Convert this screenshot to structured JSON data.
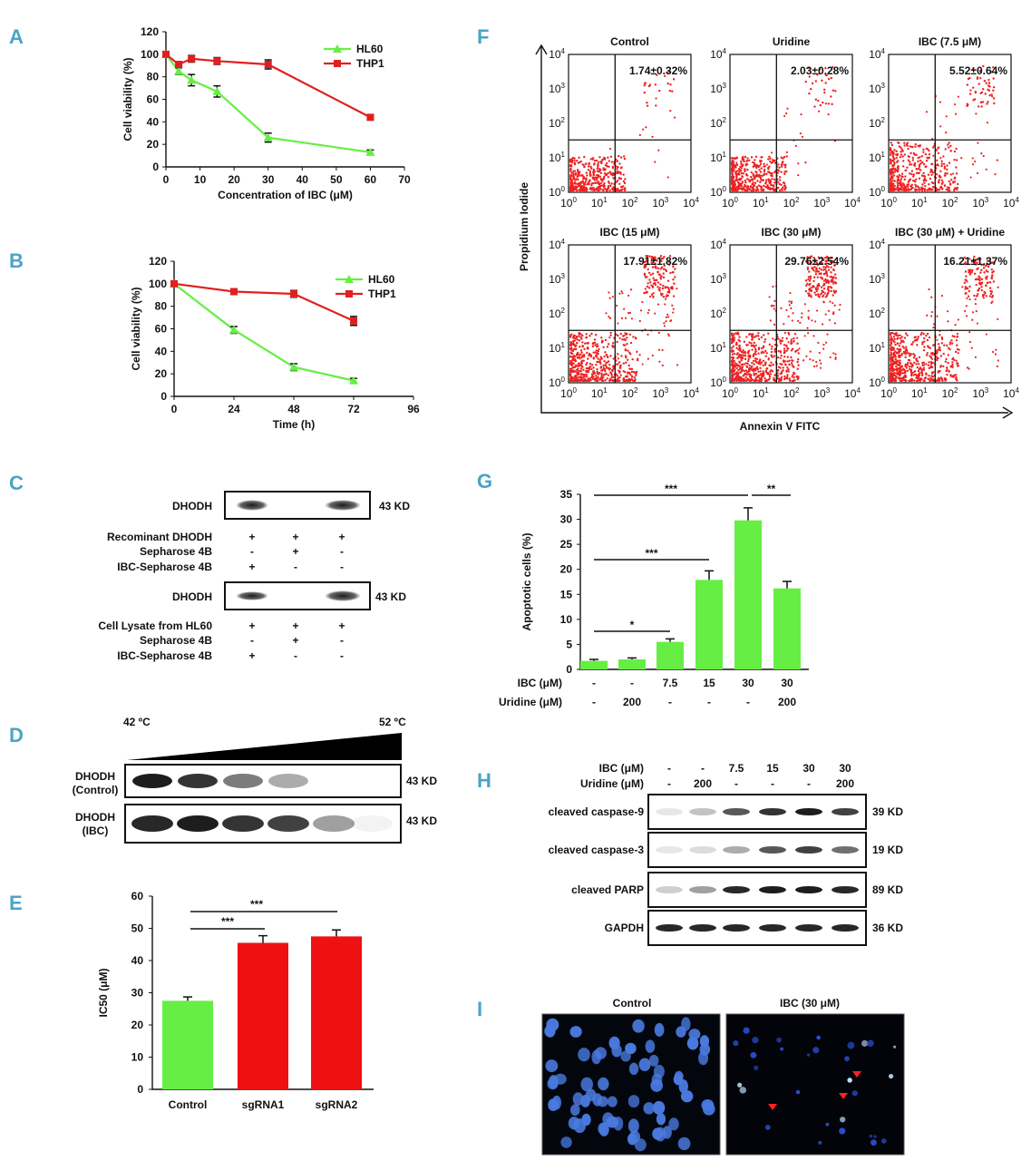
{
  "panels": {
    "A": "A",
    "B": "B",
    "C": "C",
    "D": "D",
    "E": "E",
    "F": "F",
    "G": "G",
    "H": "H",
    "I": "I"
  },
  "colors": {
    "hl60": "#66ee44",
    "thp1": "#e02020",
    "bar_green": "#66ee44",
    "bar_red": "#ee1111",
    "dot": "#ee2222",
    "nuclei": "#4a7ae0"
  },
  "chart_data": [
    {
      "id": "A",
      "type": "line",
      "xlabel": "Concentration of IBC (μM)",
      "ylabel": "Cell viability (%)",
      "xlim": [
        0,
        70
      ],
      "ylim": [
        0,
        120
      ],
      "xticks": [
        "0",
        "10",
        "20",
        "30",
        "40",
        "50",
        "60",
        "70"
      ],
      "yticks": [
        "0",
        "20",
        "40",
        "60",
        "80",
        "100",
        "120"
      ],
      "series": [
        {
          "name": "HL60",
          "x": [
            0,
            3.75,
            7.5,
            15,
            30,
            60
          ],
          "y": [
            100,
            85,
            77,
            67,
            26,
            13
          ],
          "err": [
            2,
            3,
            5,
            5,
            4,
            2
          ]
        },
        {
          "name": "THP1",
          "x": [
            0,
            3.75,
            7.5,
            15,
            30,
            60
          ],
          "y": [
            100,
            91,
            96,
            94,
            91,
            44
          ],
          "err": [
            2,
            2,
            3,
            3,
            4,
            2
          ]
        }
      ]
    },
    {
      "id": "B",
      "type": "line",
      "xlabel": "Time (h)",
      "ylabel": "Cell viability (%)",
      "xlim": [
        0,
        96
      ],
      "ylim": [
        0,
        120
      ],
      "xticks": [
        "0",
        "24",
        "48",
        "72",
        "96"
      ],
      "yticks": [
        "0",
        "20",
        "40",
        "60",
        "80",
        "100",
        "120"
      ],
      "series": [
        {
          "name": "HL60",
          "x": [
            0,
            24,
            48,
            72
          ],
          "y": [
            100,
            59,
            26,
            14
          ],
          "err": [
            1,
            3,
            3,
            2
          ]
        },
        {
          "name": "THP1",
          "x": [
            0,
            24,
            48,
            72
          ],
          "y": [
            100,
            93,
            91,
            67
          ],
          "err": [
            1,
            2,
            3,
            4
          ]
        }
      ]
    },
    {
      "id": "E",
      "type": "bar",
      "ylabel": "IC50 (μM)",
      "ylim": [
        0,
        60
      ],
      "yticks": [
        "0",
        "10",
        "20",
        "30",
        "40",
        "50",
        "60"
      ],
      "categories": [
        "Control",
        "sgRNA1",
        "sgRNA2"
      ],
      "values": [
        27.5,
        45.5,
        47.5
      ],
      "err": [
        1.2,
        2.2,
        2.0
      ],
      "significance": [
        "***",
        "***"
      ]
    },
    {
      "id": "G",
      "type": "bar",
      "ylabel": "Apoptotic cells (%)",
      "ylim": [
        0,
        35
      ],
      "yticks": [
        "0",
        "5",
        "10",
        "15",
        "20",
        "25",
        "30",
        "35"
      ],
      "values": [
        1.7,
        2.0,
        5.5,
        17.9,
        29.8,
        16.2
      ],
      "err": [
        0.3,
        0.3,
        0.6,
        1.8,
        2.5,
        1.4
      ],
      "row_labels": [
        "IBC (μM)",
        "Uridine (μM)"
      ],
      "ibc": [
        "-",
        "-",
        "7.5",
        "15",
        "30",
        "30"
      ],
      "uridine": [
        "-",
        "200",
        "-",
        "-",
        "-",
        "200"
      ],
      "significance": [
        "***",
        "**",
        "***",
        "*"
      ]
    }
  ],
  "panelC": {
    "band_label": "DHODH",
    "kd": "43 KD",
    "rows1": [
      "Recominant DHODH",
      "Sepharose 4B",
      "IBC-Sepharose 4B"
    ],
    "rows2": [
      "Cell Lysate from HL60",
      "Sepharose 4B",
      "IBC-Sepharose 4B"
    ],
    "signs": [
      [
        "+",
        "+",
        "+"
      ],
      [
        "-",
        "+",
        "-"
      ],
      [
        "+",
        "-",
        "-"
      ]
    ]
  },
  "panelD": {
    "temp_low": "42 ºC",
    "temp_high": "52 ºC",
    "row1_a": "DHODH",
    "row1_b": "(Control)",
    "row2_a": "DHODH",
    "row2_b": "(IBC)",
    "kd": "43 KD"
  },
  "panelF": {
    "ylabel": "Propidium Iodide",
    "xlabel": "Annexin  V FITC",
    "plots": [
      {
        "title": "Control",
        "value": "1.74±0.32%"
      },
      {
        "title": "Uridine",
        "value": "2.03±0.28%"
      },
      {
        "title": "IBC (7.5 μM)",
        "value": "5.52±0.64%"
      },
      {
        "title": "IBC (15 μM)",
        "value": "17.91±1.82%"
      },
      {
        "title": "IBC (30 μM)",
        "value": "29.76±2.54%"
      },
      {
        "title": "IBC (30 μM) + Uridine",
        "value": "16.21±1.37%"
      }
    ],
    "tick_exp": [
      "0",
      "1",
      "2",
      "3",
      "4"
    ]
  },
  "panelH": {
    "ibc_label": "IBC (μM)",
    "uridine_label": "Uridine (μM)",
    "ibc": [
      "-",
      "-",
      "7.5",
      "15",
      "30",
      "30"
    ],
    "uridine": [
      "-",
      "200",
      "-",
      "-",
      "-",
      "200"
    ],
    "rows": [
      {
        "name": "cleaved caspase-9",
        "kd": "39 KD"
      },
      {
        "name": "cleaved caspase-3",
        "kd": "19 KD"
      },
      {
        "name": "cleaved PARP",
        "kd": "89 KD"
      },
      {
        "name": "GAPDH",
        "kd": "36 KD"
      }
    ]
  },
  "panelI": {
    "left": "Control",
    "right": "IBC (30 μM)"
  }
}
